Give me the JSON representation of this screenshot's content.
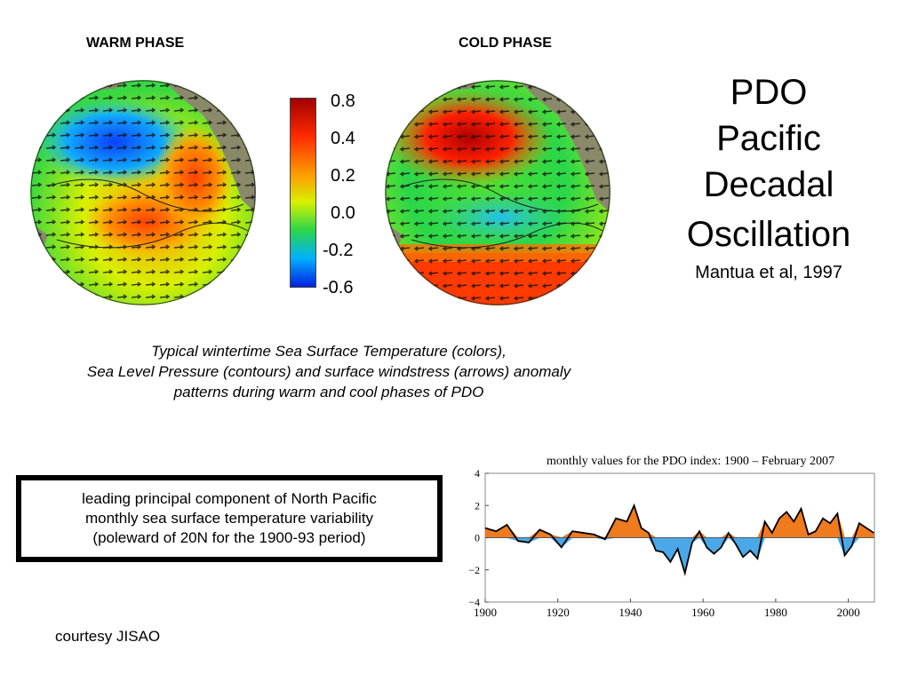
{
  "maps": {
    "warm_label": "WARM PHASE",
    "cold_label": "COLD PHASE"
  },
  "colorbar": {
    "labels": [
      "0.8",
      "0.4",
      "0.2",
      "0.0",
      "-0.2",
      "-0.6"
    ],
    "colors": [
      "#a00000",
      "#ff2a00",
      "#ff9a00",
      "#d8f000",
      "#2ad64a",
      "#00b0ff",
      "#0020e0"
    ]
  },
  "title": {
    "lines": [
      "PDO",
      "Pacific",
      "Decadal",
      "Oscillation"
    ],
    "citation": "Mantua et al, 1997"
  },
  "caption": {
    "lines": [
      "Typical wintertime Sea Surface Temperature (colors),",
      "Sea Level Pressure (contours) and surface windstress (arrows) anomaly",
      "patterns during warm and cool phases of PDO"
    ]
  },
  "definition_box": {
    "lines": [
      "leading principal component of North Pacific",
      "monthly sea surface temperature variability",
      "(poleward of 20N for the 1900-93 period)"
    ]
  },
  "credit": "courtesy JISAO",
  "chart_data": {
    "type": "area",
    "title": "monthly values for the PDO index: 1900 – February 2007",
    "xlabel": "",
    "ylabel": "",
    "x_ticks": [
      "1900",
      "1920",
      "1940",
      "1960",
      "1980",
      "2000"
    ],
    "y_ticks": [
      "4",
      "2",
      "0",
      "−2",
      "−4"
    ],
    "xlim": [
      1900,
      2007.2
    ],
    "ylim": [
      -4,
      4
    ],
    "positive_color": "#f07a1e",
    "negative_color": "#4aa8e8",
    "smoothed_color": "#000000",
    "x": [
      1900,
      1903,
      1906,
      1909,
      1912,
      1915,
      1918,
      1921,
      1924,
      1927,
      1930,
      1933,
      1936,
      1939,
      1941,
      1943,
      1945,
      1947,
      1949,
      1951,
      1953,
      1955,
      1957,
      1959,
      1961,
      1963,
      1965,
      1967,
      1969,
      1971,
      1973,
      1975,
      1977,
      1979,
      1981,
      1983,
      1985,
      1987,
      1989,
      1991,
      1993,
      1995,
      1997,
      1999,
      2001,
      2003,
      2005,
      2007
    ],
    "values": [
      0.6,
      0.4,
      0.8,
      -0.2,
      -0.3,
      0.5,
      0.2,
      -0.6,
      0.4,
      0.3,
      0.2,
      -0.1,
      1.2,
      1.0,
      2.0,
      0.6,
      0.3,
      -0.8,
      -0.9,
      -1.5,
      -0.7,
      -2.2,
      -0.3,
      0.4,
      -0.6,
      -1.0,
      -0.6,
      0.3,
      -0.4,
      -1.2,
      -0.8,
      -1.3,
      1.0,
      0.3,
      1.2,
      1.6,
      1.0,
      1.8,
      0.2,
      0.4,
      1.2,
      0.9,
      1.5,
      -1.1,
      -0.5,
      0.9,
      0.6,
      0.3
    ]
  }
}
